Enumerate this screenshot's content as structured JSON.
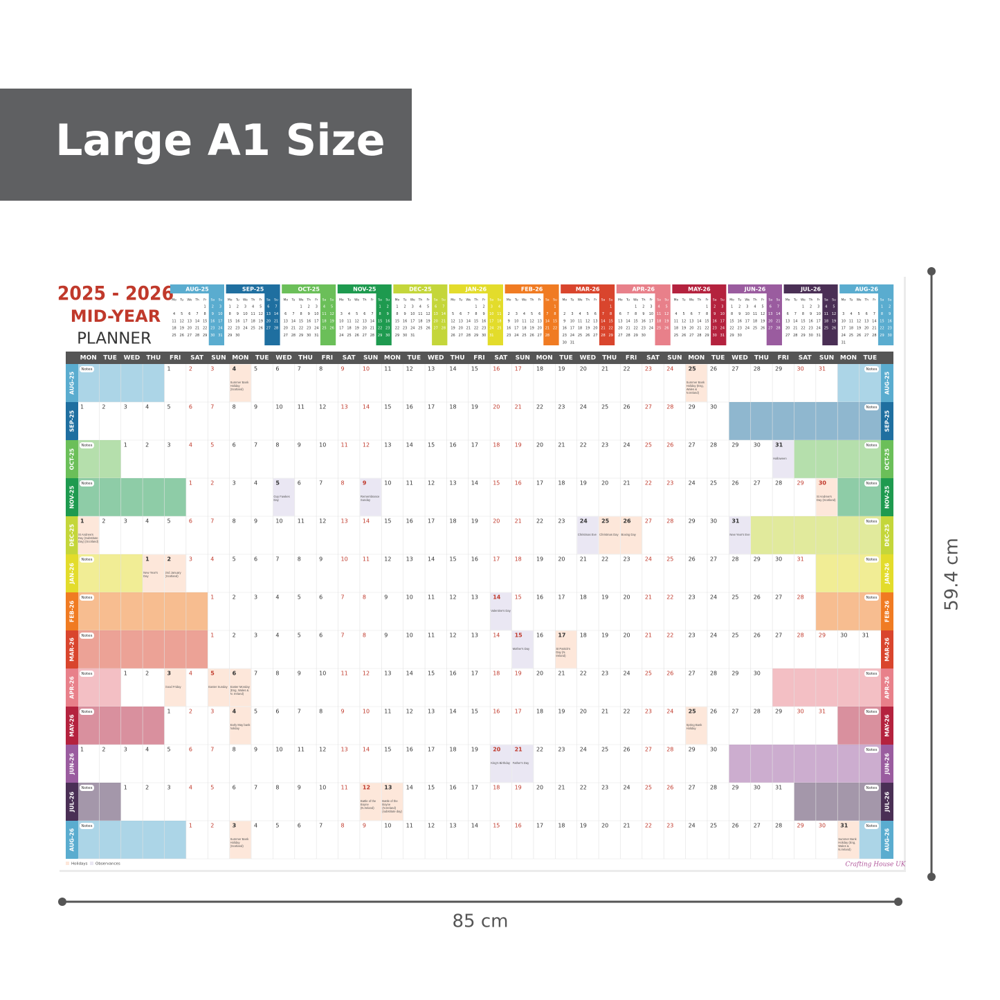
{
  "banner": "Large A1 Size",
  "title_years": "2025 - 2026",
  "title_mid": "MID-YEAR",
  "title_planner": "PLANNER",
  "width_label": "85 cm",
  "height_label": "59.4 cm",
  "weekdays": [
    "MON",
    "TUE",
    "WED",
    "THU",
    "FRI",
    "SAT",
    "SUN"
  ],
  "mini_weekdays": [
    "Mo",
    "Tu",
    "We",
    "Th",
    "Fr",
    "Sa",
    "Su"
  ],
  "notes_label": "Notes",
  "legend": [
    "Holidays",
    "Observances"
  ],
  "legend_colors": [
    "#fde7da",
    "#eae7f3"
  ],
  "logo": "Crafting House UK",
  "months": [
    {
      "label": "AUG-25",
      "color": "#5aaccf",
      "first_weekday": 4,
      "days": [
        1,
        2,
        3,
        4,
        5,
        6,
        7,
        8,
        9,
        10,
        11,
        12,
        13,
        14,
        15,
        16,
        17,
        18,
        19,
        20,
        21,
        22,
        23,
        24,
        25,
        26,
        27,
        28,
        29,
        30,
        31
      ],
      "events": [
        {
          "day": 4,
          "label": "Summer Bank Holiday (Scotland)",
          "kind": 0
        },
        {
          "day": 25,
          "label": "Summer Bank Holiday (Eng, Wales & N.Ireland)",
          "kind": 0
        }
      ]
    },
    {
      "label": "SEP-25",
      "color": "#1f6fa0",
      "first_weekday": 0,
      "days": [
        1,
        2,
        3,
        4,
        5,
        6,
        7,
        8,
        9,
        10,
        11,
        12,
        13,
        14,
        15,
        16,
        17,
        18,
        19,
        20,
        21,
        22,
        23,
        24,
        25,
        26,
        27,
        28,
        29,
        30
      ],
      "events": []
    },
    {
      "label": "OCT-25",
      "color": "#6bbf59",
      "first_weekday": 2,
      "days": [
        1,
        2,
        3,
        4,
        5,
        6,
        7,
        8,
        9,
        10,
        11,
        12,
        13,
        14,
        15,
        16,
        17,
        18,
        19,
        20,
        21,
        22,
        23,
        24,
        25,
        26,
        27,
        28,
        29,
        30,
        31
      ],
      "events": [
        {
          "day": 31,
          "label": "Halloween",
          "kind": 1
        }
      ]
    },
    {
      "label": "NOV-25",
      "color": "#1e9a4f",
      "first_weekday": 5,
      "days": [
        1,
        2,
        3,
        4,
        5,
        6,
        7,
        8,
        9,
        10,
        11,
        12,
        13,
        14,
        15,
        16,
        17,
        18,
        19,
        20,
        21,
        22,
        23,
        24,
        25,
        26,
        27,
        28,
        29,
        30
      ],
      "events": [
        {
          "day": 5,
          "label": "Guy Fawkes Day",
          "kind": 1
        },
        {
          "day": 9,
          "label": "Remembrance Sunday",
          "kind": 1
        },
        {
          "day": 30,
          "label": "St Andrew's Day (Scotland)",
          "kind": 0
        }
      ]
    },
    {
      "label": "DEC-25",
      "color": "#c4d63a",
      "first_weekday": 0,
      "days": [
        1,
        2,
        3,
        4,
        5,
        6,
        7,
        8,
        9,
        10,
        11,
        12,
        13,
        14,
        15,
        16,
        17,
        18,
        19,
        20,
        21,
        22,
        23,
        24,
        25,
        26,
        27,
        28,
        29,
        30,
        31
      ],
      "events": [
        {
          "day": 1,
          "label": "St Andrew's Day (Substitute Day) (Scotland)",
          "kind": 0
        },
        {
          "day": 24,
          "label": "Christmas Eve",
          "kind": 1
        },
        {
          "day": 25,
          "label": "Christmas Day",
          "kind": 0
        },
        {
          "day": 26,
          "label": "Boxing Day",
          "kind": 0
        },
        {
          "day": 31,
          "label": "New Year's Eve",
          "kind": 1
        }
      ]
    },
    {
      "label": "JAN-26",
      "color": "#e3dc2b",
      "first_weekday": 3,
      "days": [
        1,
        2,
        3,
        4,
        5,
        6,
        7,
        8,
        9,
        10,
        11,
        12,
        13,
        14,
        15,
        16,
        17,
        18,
        19,
        20,
        21,
        22,
        23,
        24,
        25,
        26,
        27,
        28,
        29,
        30,
        31
      ],
      "events": [
        {
          "day": 1,
          "label": "New Year's Day",
          "kind": 0
        },
        {
          "day": 2,
          "label": "2nd January (Scotland)",
          "kind": 0
        }
      ]
    },
    {
      "label": "FEB-26",
      "color": "#f07b22",
      "first_weekday": 6,
      "days": [
        1,
        2,
        3,
        4,
        5,
        6,
        7,
        8,
        9,
        10,
        11,
        12,
        13,
        14,
        15,
        16,
        17,
        18,
        19,
        20,
        21,
        22,
        23,
        24,
        25,
        26,
        27,
        28
      ],
      "events": [
        {
          "day": 14,
          "label": "Valentine's Day",
          "kind": 1
        }
      ]
    },
    {
      "label": "MAR-26",
      "color": "#d9452d",
      "first_weekday": 6,
      "days": [
        1,
        2,
        3,
        4,
        5,
        6,
        7,
        8,
        9,
        10,
        11,
        12,
        13,
        14,
        15,
        16,
        17,
        18,
        19,
        20,
        21,
        22,
        23,
        24,
        25,
        26,
        27,
        28,
        29,
        30,
        31
      ],
      "events": [
        {
          "day": 15,
          "label": "Mother's Day",
          "kind": 1
        },
        {
          "day": 17,
          "label": "St Patrick's Day (N. Ireland)",
          "kind": 0
        }
      ]
    },
    {
      "label": "APR-26",
      "color": "#e8808a",
      "first_weekday": 2,
      "days": [
        1,
        2,
        3,
        4,
        5,
        6,
        7,
        8,
        9,
        10,
        11,
        12,
        13,
        14,
        15,
        16,
        17,
        18,
        19,
        20,
        21,
        22,
        23,
        24,
        25,
        26,
        27,
        28,
        29,
        30
      ],
      "events": [
        {
          "day": 3,
          "label": "Good Friday",
          "kind": 0
        },
        {
          "day": 5,
          "label": "Easter Sunday",
          "kind": 0
        },
        {
          "day": 6,
          "label": "Easter Monday (Eng, Wales & N. Ireland)",
          "kind": 0
        }
      ]
    },
    {
      "label": "MAY-26",
      "color": "#b4223e",
      "first_weekday": 4,
      "days": [
        1,
        2,
        3,
        4,
        5,
        6,
        7,
        8,
        9,
        10,
        11,
        12,
        13,
        14,
        15,
        16,
        17,
        18,
        19,
        20,
        21,
        22,
        23,
        24,
        25,
        26,
        27,
        28,
        29,
        30,
        31
      ],
      "events": [
        {
          "day": 4,
          "label": "Early May bank holiday",
          "kind": 0
        },
        {
          "day": 25,
          "label": "Spring Bank Holiday",
          "kind": 0
        }
      ]
    },
    {
      "label": "JUN-26",
      "color": "#9a5c9f",
      "first_weekday": 0,
      "days": [
        1,
        2,
        3,
        4,
        5,
        6,
        7,
        8,
        9,
        10,
        11,
        12,
        13,
        14,
        15,
        16,
        17,
        18,
        19,
        20,
        21,
        22,
        23,
        24,
        25,
        26,
        27,
        28,
        29,
        30
      ],
      "events": [
        {
          "day": 20,
          "label": "King's Birthday",
          "kind": 1
        },
        {
          "day": 21,
          "label": "Father's Day",
          "kind": 1
        }
      ]
    },
    {
      "label": "JUL-26",
      "color": "#4a2f55",
      "first_weekday": 2,
      "days": [
        1,
        2,
        3,
        4,
        5,
        6,
        7,
        8,
        9,
        10,
        11,
        12,
        13,
        14,
        15,
        16,
        17,
        18,
        19,
        20,
        21,
        22,
        23,
        24,
        25,
        26,
        27,
        28,
        29,
        30,
        31
      ],
      "events": [
        {
          "day": 12,
          "label": "Battle of the Boyne (N.Ireland)",
          "kind": 0
        },
        {
          "day": 13,
          "label": "Battle of the Boyne (N.Ireland) (substitute day)",
          "kind": 0
        }
      ]
    },
    {
      "label": "AUG-26",
      "color": "#5aaccf",
      "first_weekday": 5,
      "days": [
        1,
        2,
        3,
        4,
        5,
        6,
        7,
        8,
        9,
        10,
        11,
        12,
        13,
        14,
        15,
        16,
        17,
        18,
        19,
        20,
        21,
        22,
        23,
        24,
        25,
        26,
        27,
        28,
        29,
        30,
        31
      ],
      "events": [
        {
          "day": 3,
          "label": "Summer Bank Holiday (Scotland)",
          "kind": 0
        },
        {
          "day": 31,
          "label": "Summer Bank Holiday (Eng, Wales & N.Ireland)",
          "kind": 0
        }
      ]
    }
  ]
}
